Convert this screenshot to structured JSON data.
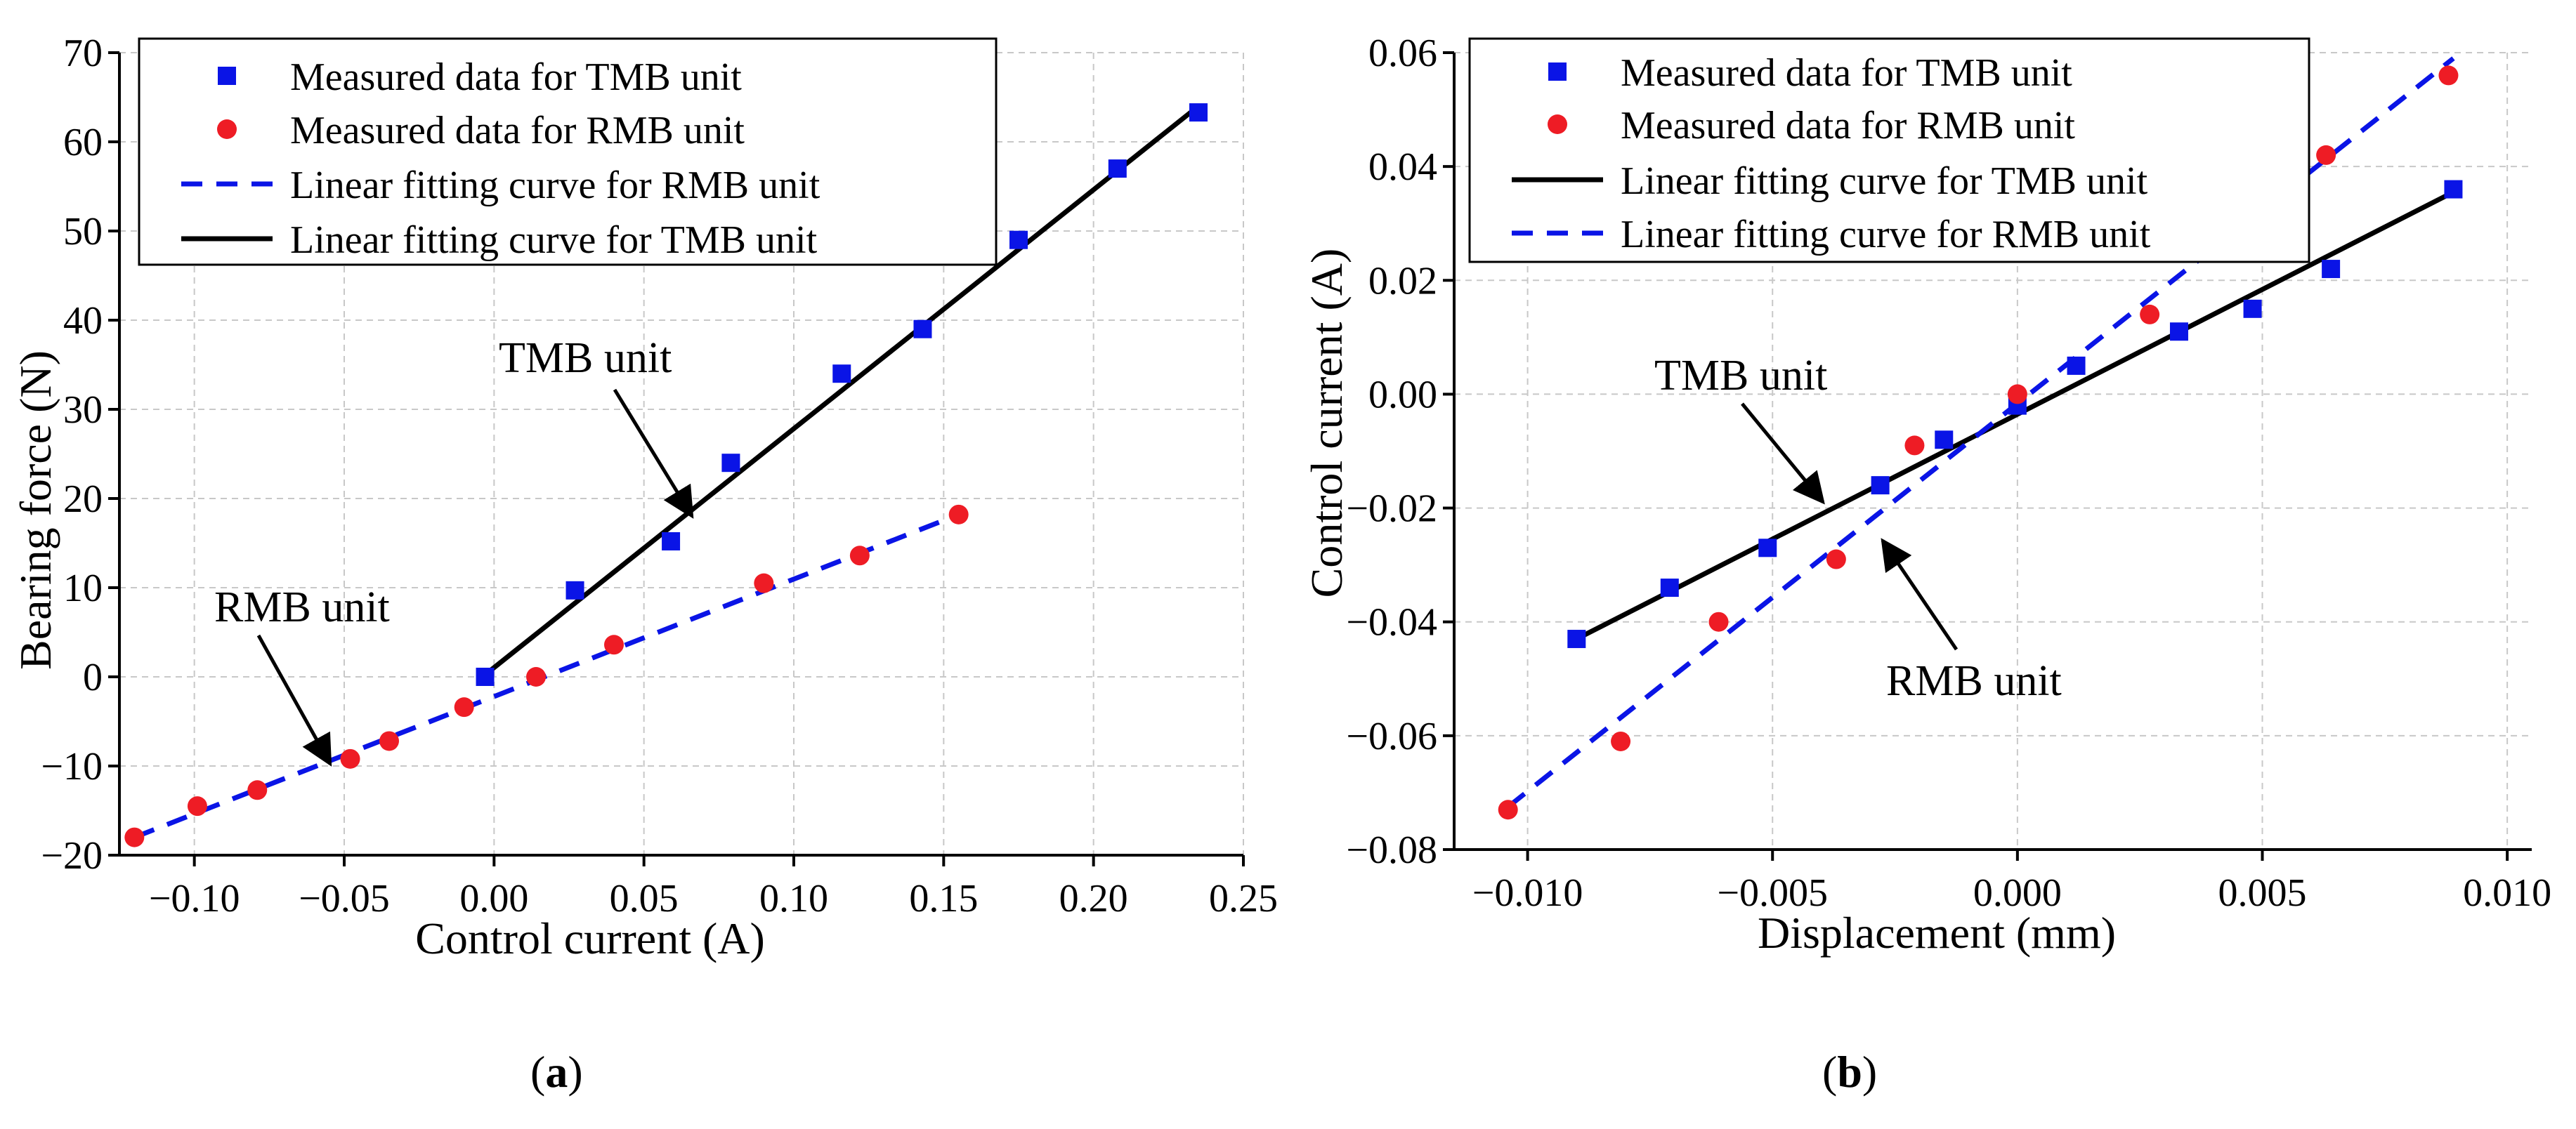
{
  "figure": {
    "panel_labels": [
      {
        "open": "(",
        "letter": "a",
        "close": ")"
      },
      {
        "open": "(",
        "letter": "b",
        "close": ")"
      }
    ]
  },
  "chart_data": [
    {
      "type": "scatter",
      "title": "",
      "xlabel": "Control current (A)",
      "ylabel": "Bearing force (N)",
      "xlim": [
        -0.125,
        0.25
      ],
      "ylim": [
        -20,
        70
      ],
      "xticks": [
        -0.1,
        -0.05,
        0.0,
        0.05,
        0.1,
        0.15,
        0.2,
        0.25
      ],
      "xtick_labels": [
        "−0.10",
        "−0.05",
        "0.00",
        "0.05",
        "0.10",
        "0.15",
        "0.20",
        "0.25"
      ],
      "yticks": [
        -20,
        -10,
        0,
        10,
        20,
        30,
        40,
        50,
        60,
        70
      ],
      "ytick_labels": [
        "−20",
        "−10",
        "0",
        "10",
        "20",
        "30",
        "40",
        "50",
        "60",
        "70"
      ],
      "grid": true,
      "series": [
        {
          "name": "Measured data for TMB unit",
          "kind": "scatter",
          "marker": "square",
          "color": "#0a14e6",
          "x": [
            -0.003,
            0.027,
            0.059,
            0.079,
            0.116,
            0.143,
            0.175,
            0.208,
            0.235
          ],
          "y": [
            0.0,
            9.7,
            15.2,
            24.0,
            34.0,
            39.0,
            49.0,
            57.0,
            63.3
          ]
        },
        {
          "name": "Measured data for RMB unit",
          "kind": "scatter",
          "marker": "circle",
          "color": "#ee1c25",
          "x": [
            -0.12,
            -0.099,
            -0.079,
            -0.048,
            -0.035,
            -0.01,
            0.014,
            0.04,
            0.09,
            0.122,
            0.155
          ],
          "y": [
            -18.0,
            -14.5,
            -12.7,
            -9.2,
            -7.2,
            -3.4,
            0.0,
            3.6,
            10.5,
            13.6,
            18.2
          ]
        },
        {
          "name": "Linear fitting curve for RMB unit",
          "kind": "line",
          "style": "dashed",
          "color": "#0a14e6",
          "x": [
            -0.12,
            0.155
          ],
          "y": [
            -18.0,
            18.2
          ]
        },
        {
          "name": "Linear fitting curve for TMB unit",
          "kind": "line",
          "style": "solid",
          "color": "#000000",
          "x": [
            -0.002,
            0.235
          ],
          "y": [
            0.5,
            64.0
          ]
        }
      ],
      "legend_order": [
        0,
        1,
        2,
        3
      ],
      "legend_position": "top-left",
      "annotations": [
        {
          "text": "TMB unit",
          "points_to": "Linear fitting curve for TMB unit"
        },
        {
          "text": "RMB unit",
          "points_to": "Linear fitting curve for RMB unit"
        }
      ]
    },
    {
      "type": "scatter",
      "title": "",
      "xlabel": "Displacement (mm)",
      "ylabel": "Control current (A)",
      "xlim": [
        -0.0115,
        0.0105
      ],
      "ylim": [
        -0.08,
        0.06
      ],
      "xticks": [
        -0.01,
        -0.005,
        0.0,
        0.005,
        0.01
      ],
      "xtick_labels": [
        "−0.010",
        "−0.005",
        "0.000",
        "0.005",
        "0.010"
      ],
      "yticks": [
        -0.08,
        -0.06,
        -0.04,
        -0.02,
        0.0,
        0.02,
        0.04,
        0.06
      ],
      "ytick_labels": [
        "−0.08",
        "−0.06",
        "−0.04",
        "−0.02",
        "0.00",
        "0.02",
        "0.04",
        "0.06"
      ],
      "grid": true,
      "series": [
        {
          "name": "Measured data for TMB unit",
          "kind": "scatter",
          "marker": "square",
          "color": "#0a14e6",
          "x": [
            -0.009,
            -0.0071,
            -0.0051,
            -0.0028,
            -0.0015,
            0.0,
            0.0012,
            0.0033,
            0.0048,
            0.0064,
            0.0089
          ],
          "y": [
            -0.043,
            -0.034,
            -0.027,
            -0.016,
            -0.008,
            -0.002,
            0.005,
            0.011,
            0.015,
            0.022,
            0.036
          ]
        },
        {
          "name": "Measured data for RMB unit",
          "kind": "scatter",
          "marker": "circle",
          "color": "#ee1c25",
          "x": [
            -0.0104,
            -0.0081,
            -0.0061,
            -0.0037,
            -0.0021,
            0.0,
            0.0027,
            0.0063,
            0.0088
          ],
          "y": [
            -0.073,
            -0.061,
            -0.04,
            -0.029,
            -0.009,
            0.0,
            0.014,
            0.042,
            0.056
          ]
        },
        {
          "name": "Linear fitting curve for TMB unit",
          "kind": "line",
          "style": "solid",
          "color": "#000000",
          "x": [
            -0.009,
            0.0089
          ],
          "y": [
            -0.043,
            0.0355
          ]
        },
        {
          "name": "Linear fitting curve for RMB unit",
          "kind": "line",
          "style": "dashed",
          "color": "#0a14e6",
          "x": [
            -0.0104,
            0.0089
          ],
          "y": [
            -0.0725,
            0.059
          ]
        }
      ],
      "legend_order": [
        0,
        1,
        2,
        3
      ],
      "legend_position": "top-left",
      "annotations": [
        {
          "text": "TMB unit",
          "points_to": "Linear fitting curve for TMB unit"
        },
        {
          "text": "RMB unit",
          "points_to": "Linear fitting curve for RMB unit"
        }
      ]
    }
  ]
}
